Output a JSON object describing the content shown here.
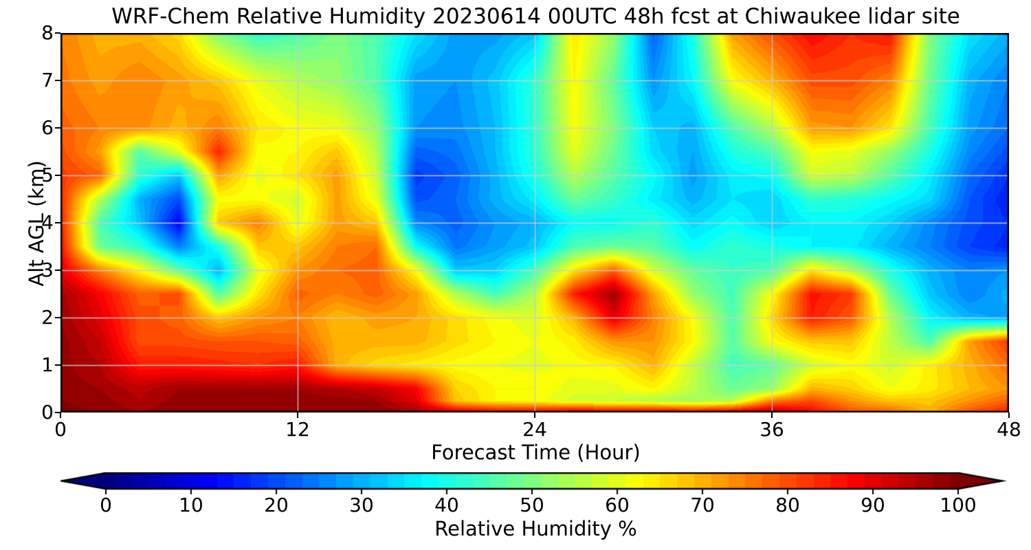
{
  "title": "WRF-Chem Relative Humidity 20230614 00UTC 48h fcst at Chiwaukee lidar site",
  "xlabel": "Forecast Time (Hour)",
  "ylabel": "Alt AGL (km)",
  "x_ticks": [
    0,
    12,
    24,
    36,
    48
  ],
  "y_ticks": [
    0,
    1,
    2,
    3,
    4,
    5,
    6,
    7,
    8
  ],
  "colorbar": {
    "label": "Relative Humidity %",
    "ticks": [
      0,
      10,
      20,
      30,
      40,
      50,
      60,
      70,
      80,
      90,
      100
    ],
    "min": 0,
    "max": 100,
    "extend": "both",
    "under_color": "#00007f",
    "over_color": "#7f0000"
  },
  "figure": {
    "background": "#ffffff",
    "frame_color": "#000000",
    "grid_color": "#cbcbcb",
    "grid_on": true
  },
  "chart_data": {
    "type": "heatmap",
    "title": "WRF-Chem Relative Humidity 20230614 00UTC 48h fcst at Chiwaukee lidar site",
    "xlabel": "Forecast Time (Hour)",
    "ylabel": "Alt AGL (km)",
    "zlabel": "Relative Humidity %",
    "colormap": "jet",
    "xlim": [
      0,
      48
    ],
    "ylim": [
      0,
      8
    ],
    "zlim": [
      0,
      100
    ],
    "grid": true,
    "x": [
      0,
      2,
      4,
      6,
      8,
      10,
      12,
      14,
      16,
      18,
      20,
      22,
      24,
      26,
      28,
      30,
      32,
      34,
      36,
      38,
      40,
      42,
      44,
      46,
      48
    ],
    "y": [
      0,
      0.25,
      0.5,
      1,
      1.5,
      2,
      2.5,
      3,
      3.5,
      4,
      4.5,
      5,
      5.5,
      6,
      7,
      8
    ],
    "y_order": "bottom-to-top",
    "values": [
      [
        100,
        99,
        97,
        99,
        99,
        99,
        99,
        99,
        99,
        97,
        92,
        90,
        90,
        92,
        92,
        92,
        90,
        93,
        96,
        88,
        80,
        78,
        70,
        80,
        85
      ],
      [
        99,
        98,
        95,
        98,
        98,
        98,
        98,
        98,
        97,
        90,
        68,
        63,
        62,
        58,
        57,
        55,
        53,
        55,
        75,
        80,
        73,
        68,
        68,
        73,
        78
      ],
      [
        98,
        97,
        94,
        97,
        97,
        97,
        97,
        95,
        93,
        88,
        67,
        63,
        63,
        60,
        60,
        63,
        56,
        48,
        52,
        70,
        67,
        61,
        64,
        69,
        73
      ],
      [
        98,
        95,
        85,
        85,
        84,
        83,
        85,
        70,
        66,
        64,
        62,
        61,
        60,
        62,
        63,
        70,
        57,
        44,
        47,
        58,
        62,
        58,
        64,
        70,
        77
      ],
      [
        98,
        93,
        80,
        80,
        79,
        79,
        78,
        70,
        70,
        70,
        66,
        63,
        61,
        64,
        73,
        73,
        63,
        46,
        62,
        68,
        68,
        56,
        45,
        72,
        82
      ],
      [
        97,
        90,
        80,
        78,
        68,
        73,
        75,
        69,
        72,
        71,
        66,
        62,
        59,
        70,
        90,
        75,
        62,
        45,
        66,
        85,
        79,
        55,
        37,
        30,
        28
      ],
      [
        96,
        88,
        78,
        80,
        46,
        65,
        78,
        75,
        78,
        72,
        55,
        44,
        55,
        85,
        97,
        72,
        52,
        44,
        62,
        86,
        82,
        48,
        32,
        25,
        30
      ],
      [
        90,
        75,
        63,
        47,
        30,
        60,
        73,
        77,
        78,
        62,
        32,
        33,
        44,
        65,
        78,
        58,
        47,
        43,
        45,
        65,
        55,
        40,
        30,
        25,
        27
      ],
      [
        87,
        48,
        42,
        25,
        40,
        68,
        68,
        75,
        77,
        38,
        24,
        28,
        32,
        45,
        48,
        46,
        38,
        42,
        40,
        37,
        36,
        30,
        25,
        19,
        16
      ],
      [
        85,
        45,
        32,
        12,
        68,
        75,
        60,
        72,
        68,
        26,
        22,
        27,
        30,
        38,
        38,
        42,
        34,
        38,
        33,
        37,
        37,
        33,
        26,
        20,
        17
      ],
      [
        84,
        55,
        30,
        20,
        62,
        62,
        58,
        72,
        60,
        20,
        23,
        30,
        36,
        48,
        43,
        36,
        30,
        35,
        33,
        42,
        41,
        38,
        34,
        21,
        15
      ],
      [
        82,
        78,
        42,
        32,
        72,
        60,
        65,
        72,
        57,
        18,
        22,
        30,
        40,
        55,
        46,
        38,
        28,
        36,
        38,
        58,
        56,
        46,
        36,
        23,
        17
      ],
      [
        80,
        72,
        46,
        60,
        84,
        62,
        63,
        68,
        55,
        22,
        24,
        31,
        42,
        60,
        48,
        34,
        29,
        40,
        45,
        62,
        60,
        52,
        40,
        26,
        20
      ],
      [
        78,
        75,
        74,
        70,
        75,
        65,
        62,
        61,
        52,
        27,
        26,
        31,
        42,
        62,
        50,
        33,
        30,
        45,
        55,
        72,
        73,
        65,
        44,
        28,
        23
      ],
      [
        76,
        72,
        75,
        72,
        68,
        60,
        55,
        52,
        45,
        28,
        27,
        32,
        42,
        63,
        47,
        27,
        37,
        62,
        70,
        80,
        80,
        75,
        48,
        30,
        25
      ],
      [
        75,
        70,
        70,
        66,
        50,
        42,
        45,
        50,
        45,
        35,
        28,
        28,
        32,
        65,
        52,
        22,
        40,
        72,
        80,
        87,
        83,
        86,
        50,
        35,
        30
      ]
    ]
  }
}
